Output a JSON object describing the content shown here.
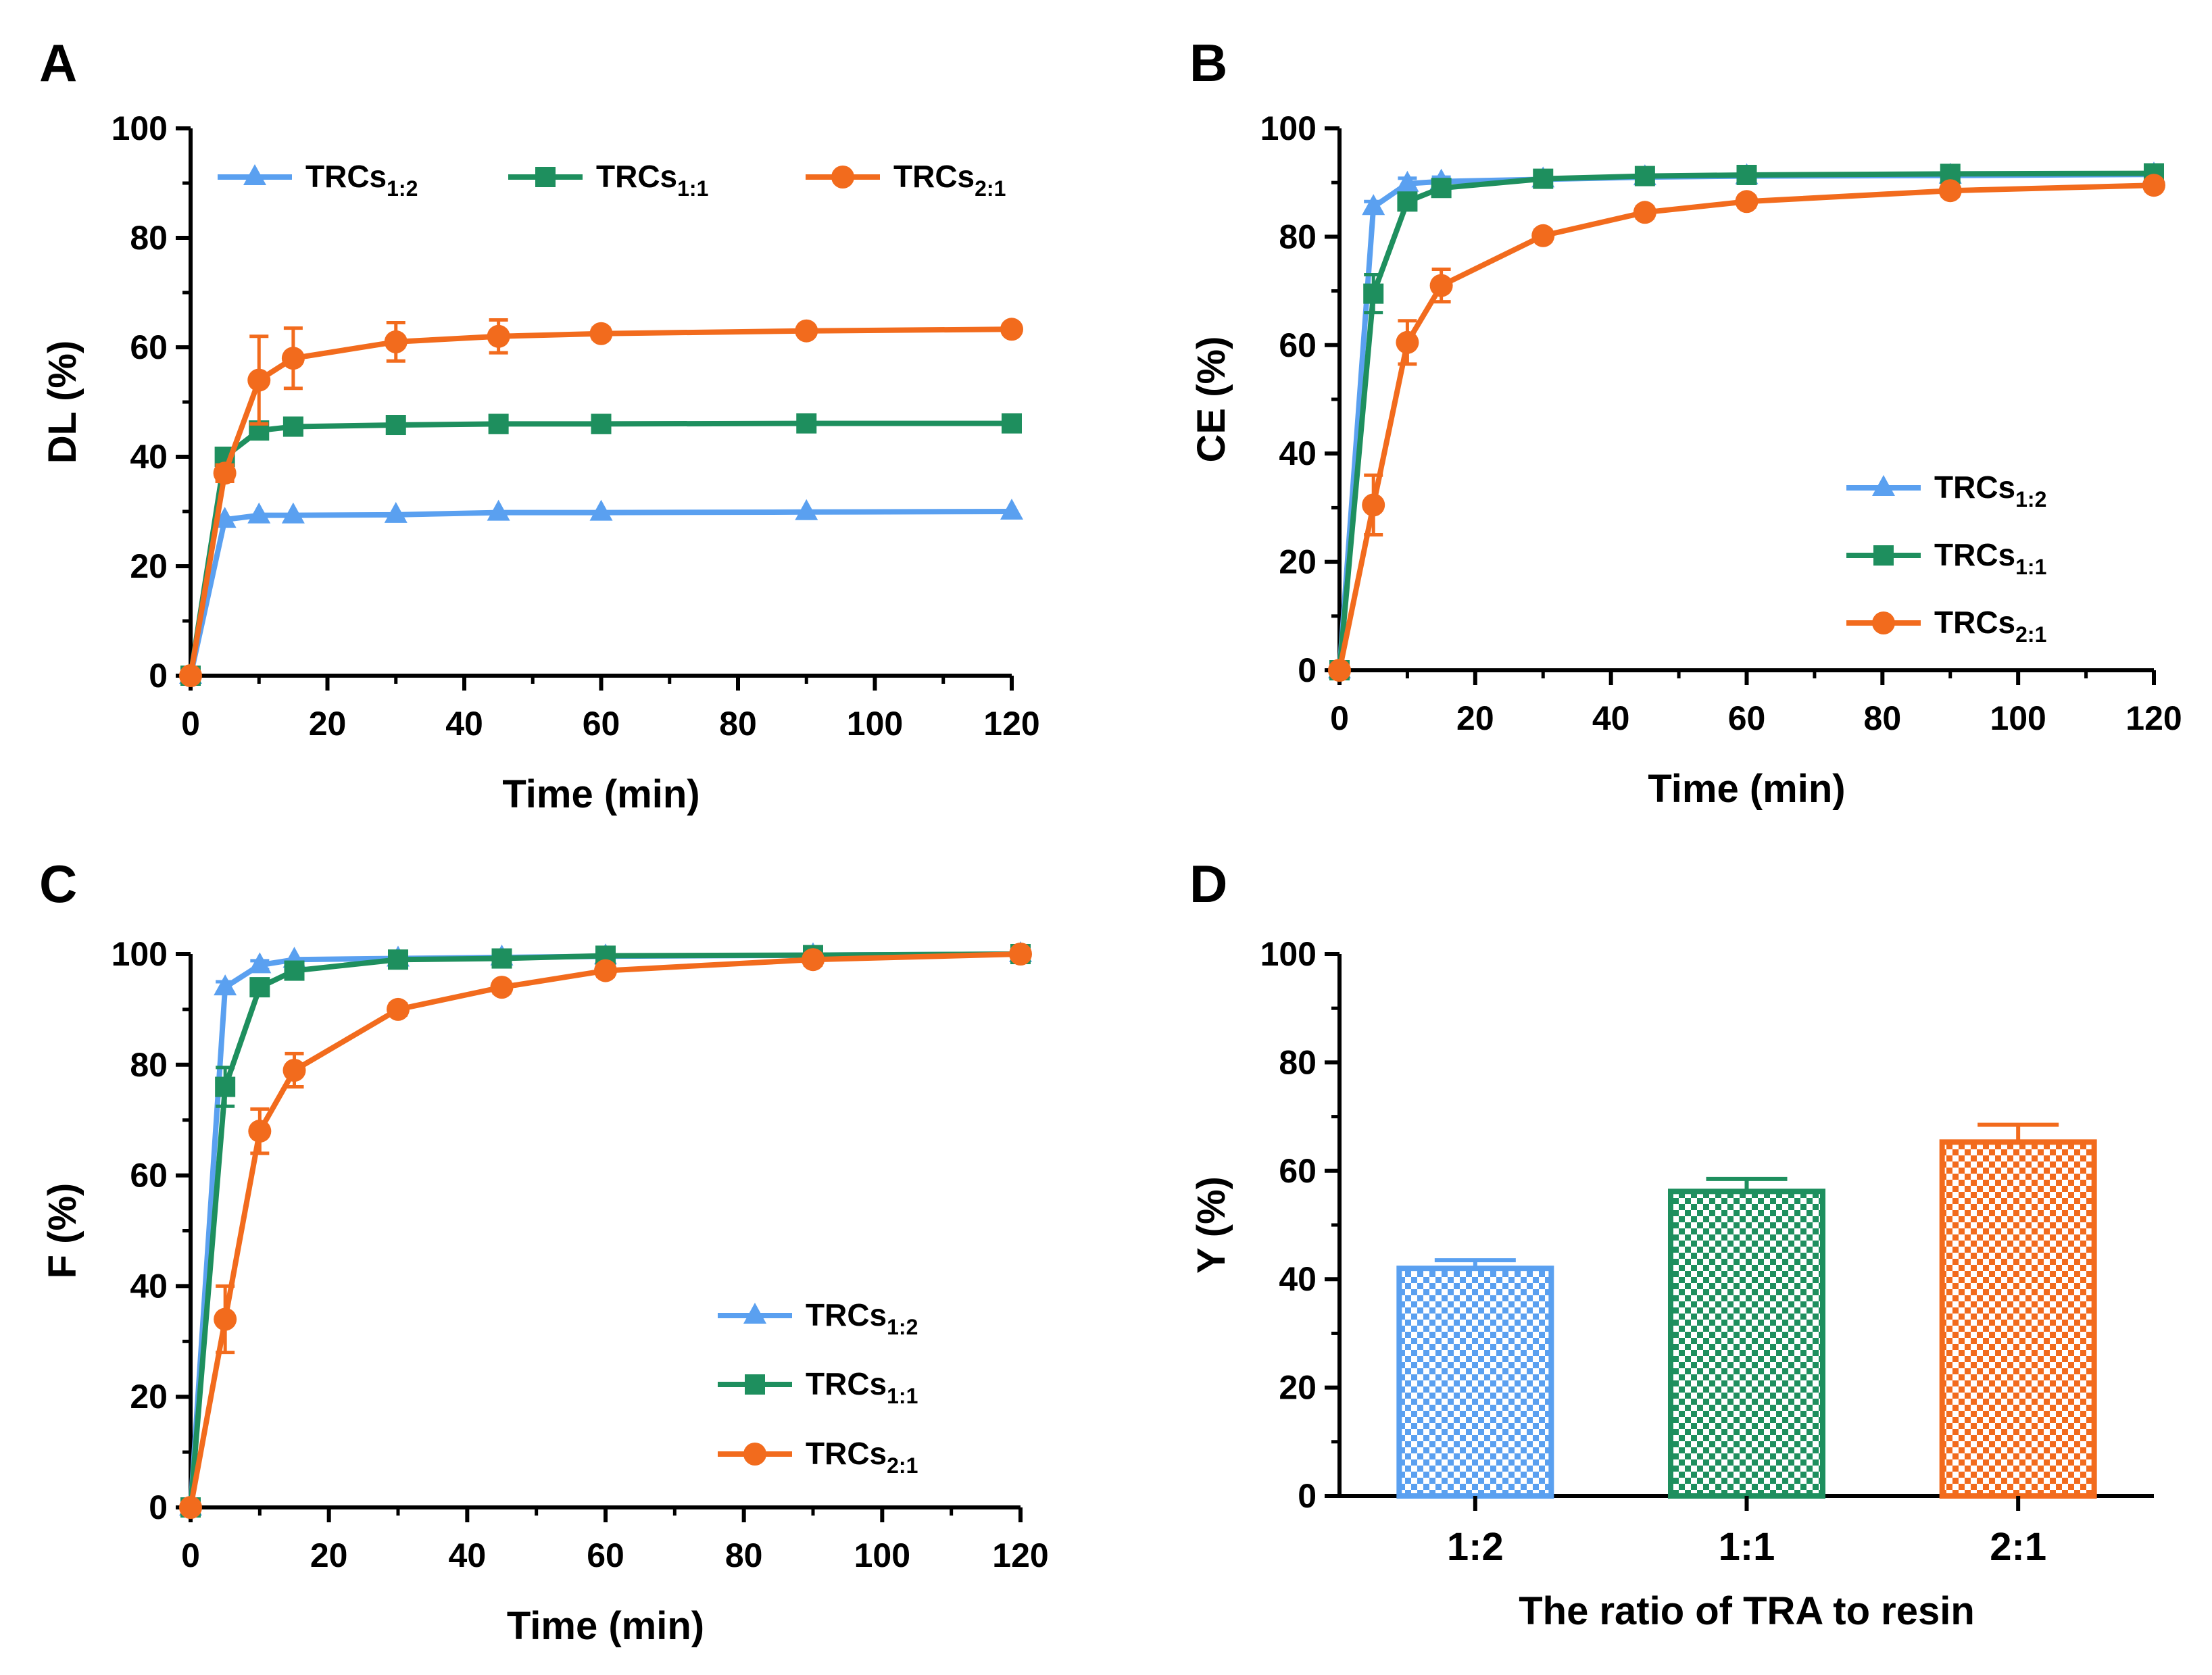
{
  "colors": {
    "TRCs_1_2": "#5aa0f0",
    "TRCs_1_1": "#1e8f5e",
    "TRCs_2_1": "#f26b1d"
  },
  "chart_data": [
    {
      "panel": "A",
      "type": "line",
      "xlabel": "Time (min)",
      "ylabel": "DL (%)",
      "xlim": [
        0,
        120
      ],
      "ylim": [
        0,
        100
      ],
      "xticks": [
        0,
        20,
        40,
        60,
        80,
        100,
        120
      ],
      "yticks": [
        0,
        20,
        40,
        60,
        80,
        100
      ],
      "legend_position": "top",
      "x": [
        0,
        5,
        10,
        15,
        30,
        45,
        60,
        90,
        120
      ],
      "series": [
        {
          "name": "TRCs",
          "sub": "1:2",
          "key": "TRCs_1_2",
          "marker": "triangle",
          "values": [
            0,
            28.5,
            29.3,
            29.3,
            29.4,
            29.8,
            29.8,
            29.9,
            30.0
          ],
          "errors": [
            0,
            0.5,
            0.5,
            0.5,
            0.5,
            0.5,
            0.5,
            0.5,
            0.5
          ]
        },
        {
          "name": "TRCs",
          "sub": "1:1",
          "key": "TRCs_1_1",
          "marker": "square",
          "values": [
            0,
            40.0,
            44.8,
            45.5,
            45.8,
            46.0,
            46.0,
            46.1,
            46.1
          ],
          "errors": [
            0,
            1.5,
            1.5,
            1.0,
            0.5,
            0.5,
            0.5,
            0.5,
            0.5
          ]
        },
        {
          "name": "TRCs",
          "sub": "2:1",
          "key": "TRCs_2_1",
          "marker": "circle",
          "values": [
            0,
            37.0,
            54.0,
            58.0,
            61.0,
            62.0,
            62.5,
            63.0,
            63.3
          ],
          "errors": [
            0,
            1.5,
            8.0,
            5.5,
            3.5,
            3.0,
            1.0,
            0.8,
            0.8
          ]
        }
      ]
    },
    {
      "panel": "B",
      "type": "line",
      "xlabel": "Time (min)",
      "ylabel": "CE (%)",
      "xlim": [
        0,
        120
      ],
      "ylim": [
        0,
        100
      ],
      "xticks": [
        0,
        20,
        40,
        60,
        80,
        100,
        120
      ],
      "yticks": [
        0,
        20,
        40,
        60,
        80,
        100
      ],
      "legend_position": "center-right",
      "x": [
        0,
        5,
        10,
        15,
        30,
        45,
        60,
        90,
        120
      ],
      "series": [
        {
          "name": "TRCs",
          "sub": "1:2",
          "key": "TRCs_1_2",
          "marker": "triangle",
          "values": [
            0,
            85.5,
            89.8,
            90.2,
            90.6,
            91.0,
            91.2,
            91.3,
            91.5
          ],
          "errors": [
            0,
            1.0,
            1.0,
            0.8,
            0.8,
            0.8,
            0.8,
            0.8,
            0.8
          ]
        },
        {
          "name": "TRCs",
          "sub": "1:1",
          "key": "TRCs_1_1",
          "marker": "square",
          "values": [
            0,
            69.5,
            86.5,
            89.0,
            90.7,
            91.2,
            91.4,
            91.6,
            91.7
          ],
          "errors": [
            0,
            3.5,
            1.5,
            1.5,
            1.0,
            1.0,
            1.0,
            1.0,
            1.0
          ]
        },
        {
          "name": "TRCs",
          "sub": "2:1",
          "key": "TRCs_2_1",
          "marker": "circle",
          "values": [
            0,
            30.5,
            60.5,
            71.0,
            80.2,
            84.5,
            86.5,
            88.5,
            89.5
          ],
          "errors": [
            0,
            5.5,
            4.0,
            3.0,
            1.0,
            1.0,
            1.0,
            1.0,
            1.0
          ]
        }
      ]
    },
    {
      "panel": "C",
      "type": "line",
      "xlabel": "Time (min)",
      "ylabel": "F (%)",
      "xlim": [
        0,
        120
      ],
      "ylim": [
        0,
        100
      ],
      "xticks": [
        0,
        20,
        40,
        60,
        80,
        100,
        120
      ],
      "yticks": [
        0,
        20,
        40,
        60,
        80,
        100
      ],
      "legend_position": "bottom-right",
      "x": [
        0,
        5,
        10,
        15,
        30,
        45,
        60,
        90,
        120
      ],
      "series": [
        {
          "name": "TRCs",
          "sub": "1:2",
          "key": "TRCs_1_2",
          "marker": "triangle",
          "values": [
            0,
            94.0,
            98.0,
            99.0,
            99.2,
            99.4,
            99.6,
            99.8,
            100
          ],
          "errors": [
            0,
            1.0,
            0.8,
            0.5,
            0.5,
            0.5,
            0.5,
            0.5,
            0.5
          ]
        },
        {
          "name": "TRCs",
          "sub": "1:1",
          "key": "TRCs_1_1",
          "marker": "square",
          "values": [
            0,
            76.0,
            94.0,
            97.0,
            99.0,
            99.2,
            99.7,
            99.8,
            100
          ],
          "errors": [
            0,
            3.5,
            1.5,
            1.5,
            1.0,
            1.0,
            0.5,
            0.5,
            0.5
          ]
        },
        {
          "name": "TRCs",
          "sub": "2:1",
          "key": "TRCs_2_1",
          "marker": "circle",
          "values": [
            0,
            34.0,
            68.0,
            79.0,
            90.0,
            94.0,
            97.0,
            99.0,
            100
          ],
          "errors": [
            0,
            6.0,
            4.0,
            3.0,
            1.0,
            1.0,
            1.0,
            1.0,
            0.5
          ]
        }
      ]
    },
    {
      "panel": "D",
      "type": "bar",
      "xlabel": "The ratio of TRA to resin",
      "ylabel": "Y (%)",
      "ylim": [
        0,
        100
      ],
      "yticks": [
        0,
        20,
        40,
        60,
        80,
        100
      ],
      "categories": [
        "1:2",
        "1:1",
        "2:1"
      ],
      "category_keys": [
        "TRCs_1_2",
        "TRCs_1_1",
        "TRCs_2_1"
      ],
      "values": [
        42.0,
        56.2,
        65.3
      ],
      "errors": [
        1.5,
        2.3,
        3.2
      ]
    }
  ]
}
